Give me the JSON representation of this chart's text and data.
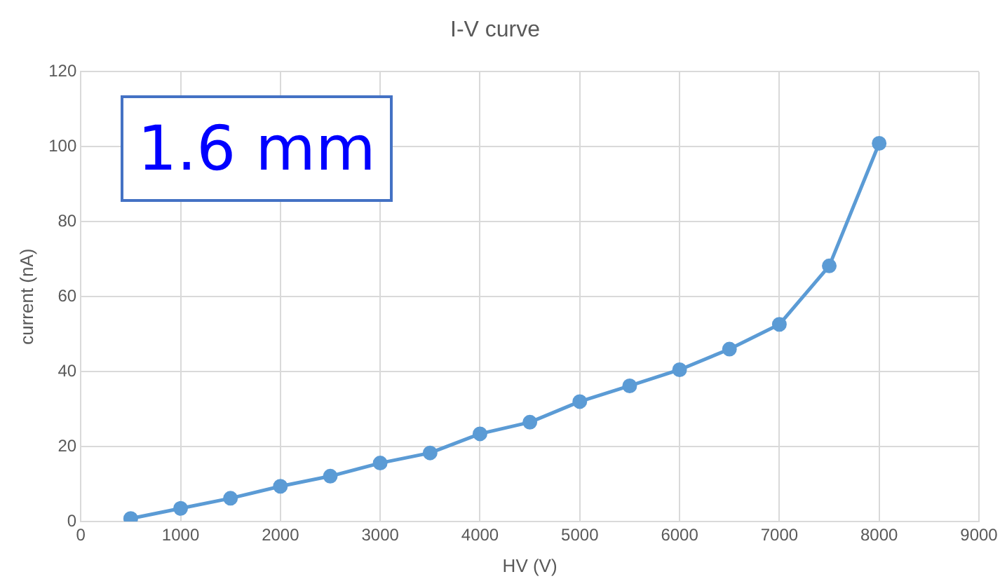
{
  "chart_data": {
    "type": "line",
    "title": "I-V curve",
    "xlabel": "HV (V)",
    "ylabel": "current (nA)",
    "annotations": [
      "1.6 mm"
    ],
    "x": [
      500,
      1000,
      1500,
      2000,
      2500,
      3000,
      3500,
      4000,
      4500,
      5000,
      5500,
      6000,
      6500,
      7000,
      7500,
      8000
    ],
    "series": [
      {
        "color": "#5b9bd5",
        "values": [
          0.8,
          3.5,
          6.2,
          9.4,
          12.1,
          15.6,
          18.3,
          23.4,
          26.5,
          32,
          36.2,
          40.5,
          46,
          52.6,
          68.2,
          100.9
        ]
      }
    ],
    "xlim": [
      0,
      9000
    ],
    "xticks": [
      0,
      1000,
      2000,
      3000,
      4000,
      5000,
      6000,
      7000,
      8000,
      9000
    ],
    "ylim": [
      0,
      120
    ],
    "yticks": [
      0,
      20,
      40,
      60,
      80,
      100,
      120
    ],
    "grid": true,
    "legend": false,
    "marker": "circle",
    "line_style": "solid"
  }
}
